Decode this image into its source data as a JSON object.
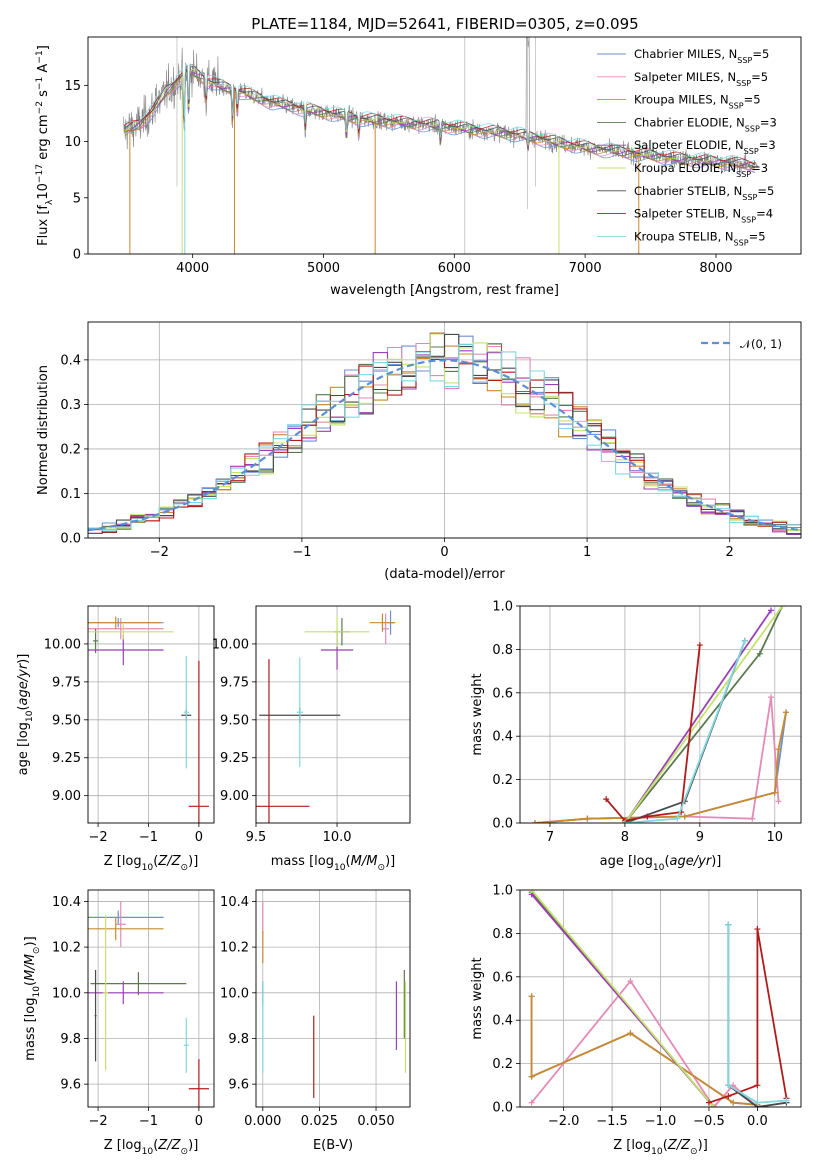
{
  "figure": {
    "title": "PLATE=1184, MJD=52641, FIBERID=0305, z=0.095"
  },
  "colors": {
    "Chabrier MILES": "#6d8fd6",
    "Salpeter MILES": "#e58ab6",
    "Kroupa MILES": "#c98a2e",
    "Chabrier ELODIE": "#5a7a4e",
    "Salpeter ELODIE": "#9b3fb5",
    "Kroupa ELODIE": "#c4e36a",
    "Chabrier STELIB": "#4a4a4a",
    "Salpeter STELIB": "#b01c1c",
    "Kroupa STELIB": "#80d8e0",
    "data": "#7f7f7f",
    "gauss": "#5b8fd6",
    "grid": "#b0b0b0"
  },
  "chart_data": [
    {
      "id": "spectrum",
      "type": "line",
      "xlabel": "wavelength [Angstrom, rest frame]",
      "ylabel": "Flux [f_λ 10^-17 erg cm^-2 s^-1 A^-1]",
      "xlim": [
        3200,
        8650
      ],
      "ylim": [
        0,
        19.3
      ],
      "xticks": [
        4000,
        5000,
        6000,
        7000,
        8000
      ],
      "yticks": [
        0,
        5,
        10,
        15
      ],
      "grid": false,
      "legend_position": "top-right",
      "legend": [
        {
          "label": "Chabrier MILES",
          "n": "5"
        },
        {
          "label": "Salpeter MILES",
          "n": "5"
        },
        {
          "label": "Kroupa MILES",
          "n": "5"
        },
        {
          "label": "Chabrier ELODIE",
          "n": "3"
        },
        {
          "label": "Salpeter ELODIE",
          "n": "3"
        },
        {
          "label": "Kroupa ELODIE",
          "n": "3"
        },
        {
          "label": "Chabrier STELIB",
          "n": "5"
        },
        {
          "label": "Salpeter STELIB",
          "n": "4"
        },
        {
          "label": "Kroupa STELIB",
          "n": "5"
        }
      ],
      "continuum": {
        "wavelength": [
          3480,
          3600,
          3700,
          3800,
          3850,
          3950,
          4000,
          4100,
          4200,
          4400,
          4600,
          4800,
          5000,
          5300,
          5600,
          5900,
          6200,
          6500,
          6800,
          7100,
          7400,
          7700,
          8000,
          8300
        ],
        "flux": [
          11.0,
          11.6,
          12.8,
          14.5,
          15.0,
          16.2,
          16.3,
          15.5,
          15.0,
          14.3,
          13.5,
          13.0,
          12.6,
          12.0,
          11.7,
          11.4,
          11.0,
          10.6,
          9.9,
          9.3,
          8.9,
          8.5,
          8.2,
          7.9
        ]
      }
    },
    {
      "id": "residual-histogram",
      "type": "bar",
      "xlabel": "(data-model)/error",
      "ylabel": "Normed distribution",
      "xlim": [
        -2.5,
        2.5
      ],
      "ylim": [
        0,
        0.485
      ],
      "xticks": [
        -2,
        -1,
        0,
        1,
        2
      ],
      "yticks": [
        0.0,
        0.1,
        0.2,
        0.3,
        0.4
      ],
      "grid": true,
      "legend_position": "top-right",
      "legend": [
        {
          "label": "𝒩(0, 1)"
        }
      ],
      "bin_width": 0.1
    },
    {
      "id": "age-vs-Z",
      "type": "scatter",
      "xlabel": "Z [log10(Z/Z☉)]",
      "ylabel": "age [log10(age/yr)]",
      "xlim": [
        -2.2,
        0.3
      ],
      "ylim": [
        8.82,
        10.25
      ],
      "xticks": [
        -2,
        -1,
        0
      ],
      "yticks": [
        9.0,
        9.25,
        9.5,
        9.75,
        10.0
      ],
      "grid": true,
      "points": [
        {
          "model": "Chabrier MILES",
          "x": -1.6,
          "y": 10.14,
          "xerr": 0.9,
          "yerr": 0.03
        },
        {
          "model": "Salpeter MILES",
          "x": -1.55,
          "y": 10.1,
          "xerr": 0.85,
          "yerr": 0.07
        },
        {
          "model": "Kroupa MILES",
          "x": -1.65,
          "y": 10.14,
          "xerr": 0.9,
          "yerr": 0.04
        },
        {
          "model": "Chabrier ELODIE",
          "x": -2.05,
          "y": 10.02,
          "xerr": 0.05,
          "yerr": 0.08
        },
        {
          "model": "Salpeter ELODIE",
          "x": -1.5,
          "y": 9.96,
          "xerr": 0.8,
          "yerr": 0.1
        },
        {
          "model": "Kroupa ELODIE",
          "x": -1.5,
          "y": 10.08,
          "xerr": 1.0,
          "yerr": 0.05
        },
        {
          "model": "Chabrier STELIB",
          "x": -0.25,
          "y": 9.53,
          "xerr": 0.1,
          "yerr": 0.04
        },
        {
          "model": "Salpeter STELIB",
          "x": 0.0,
          "y": 8.93,
          "xerr": 0.2,
          "yerr": 0.96
        },
        {
          "model": "Kroupa STELIB",
          "x": -0.25,
          "y": 9.55,
          "xerr": 0.05,
          "yerr": 0.37
        }
      ]
    },
    {
      "id": "age-vs-mass",
      "type": "scatter",
      "xlabel": "mass [log10(M/M☉)]",
      "ylabel": "",
      "xlim": [
        9.5,
        10.45
      ],
      "ylim": [
        8.82,
        10.25
      ],
      "xticks": [
        9.5,
        10.0
      ],
      "yticks": [
        9.0,
        9.25,
        9.5,
        9.75,
        10.0
      ],
      "grid": true,
      "points": [
        {
          "model": "Chabrier MILES",
          "x": 10.33,
          "y": 10.14,
          "xerr": 0.02,
          "yerr": 0.08
        },
        {
          "model": "Salpeter MILES",
          "x": 10.3,
          "y": 10.1,
          "xerr": 0.02,
          "yerr": 0.1
        },
        {
          "model": "Kroupa MILES",
          "x": 10.28,
          "y": 10.14,
          "xerr": 0.08,
          "yerr": 0.06
        },
        {
          "model": "Chabrier ELODIE",
          "x": 10.03,
          "y": 10.08,
          "xerr": 0.05,
          "yerr": 0.09
        },
        {
          "model": "Salpeter ELODIE",
          "x": 10.0,
          "y": 9.96,
          "xerr": 0.1,
          "yerr": 0.13
        },
        {
          "model": "Kroupa ELODIE",
          "x": 10.0,
          "y": 10.08,
          "xerr": 0.2,
          "yerr": 0.1
        },
        {
          "model": "Chabrier STELIB",
          "x": 9.77,
          "y": 9.53,
          "xerr": 0.25,
          "yerr": 0.05
        },
        {
          "model": "Salpeter STELIB",
          "x": 9.58,
          "y": 8.93,
          "xerr": 0.25,
          "yerr": 0.97
        },
        {
          "model": "Kroupa STELIB",
          "x": 9.77,
          "y": 9.55,
          "xerr": 0.02,
          "yerr": 0.36
        }
      ]
    },
    {
      "id": "weight-vs-age",
      "type": "line",
      "xlabel": "age [log10(age/yr)]",
      "ylabel": "mass weight",
      "xlim": [
        6.6,
        10.35
      ],
      "ylim": [
        0,
        1.0
      ],
      "xticks": [
        7,
        8,
        9,
        10
      ],
      "yticks": [
        0.0,
        0.2,
        0.4,
        0.6,
        0.8,
        1.0
      ],
      "grid": true,
      "series": [
        {
          "model": "Chabrier MILES",
          "x": [
            6.8,
            7.5,
            8.8,
            10.0,
            10.15
          ],
          "y": [
            0.0,
            0.02,
            0.03,
            0.14,
            0.51
          ]
        },
        {
          "model": "Salpeter MILES",
          "x": [
            6.8,
            7.5,
            8.8,
            9.7,
            9.95,
            10.05
          ],
          "y": [
            0.0,
            0.02,
            0.03,
            0.02,
            0.58,
            0.1
          ]
        },
        {
          "model": "Kroupa MILES",
          "x": [
            6.8,
            7.5,
            8.8,
            10.0,
            10.05,
            10.15
          ],
          "y": [
            0.0,
            0.02,
            0.03,
            0.14,
            0.34,
            0.51
          ]
        },
        {
          "model": "Chabrier ELODIE",
          "x": [
            8.0,
            9.8,
            10.1
          ],
          "y": [
            0.0,
            0.78,
            1.0
          ]
        },
        {
          "model": "Salpeter ELODIE",
          "x": [
            8.0,
            9.95
          ],
          "y": [
            0.0,
            0.98
          ]
        },
        {
          "model": "Kroupa ELODIE",
          "x": [
            8.0,
            10.1
          ],
          "y": [
            0.0,
            1.0
          ]
        },
        {
          "model": "Chabrier STELIB",
          "x": [
            8.0,
            8.8,
            9.6
          ],
          "y": [
            0.0,
            0.1,
            0.84
          ]
        },
        {
          "model": "Salpeter STELIB",
          "x": [
            7.75,
            8.0,
            8.3,
            8.75,
            9.0
          ],
          "y": [
            0.11,
            0.01,
            0.03,
            0.05,
            0.82
          ]
        },
        {
          "model": "Kroupa STELIB",
          "x": [
            8.0,
            8.7,
            9.6
          ],
          "y": [
            0.0,
            0.02,
            0.84
          ]
        }
      ]
    },
    {
      "id": "mass-vs-Z",
      "type": "scatter",
      "xlabel": "Z [log10(Z/Z☉)]",
      "ylabel": "mass [log10(M/M☉)]",
      "xlim": [
        -2.2,
        0.3
      ],
      "ylim": [
        9.5,
        10.45
      ],
      "xticks": [
        -2,
        -1,
        0
      ],
      "yticks": [
        9.6,
        9.8,
        10.0,
        10.2,
        10.4
      ],
      "grid": true,
      "points": [
        {
          "model": "Chabrier MILES",
          "x": -1.6,
          "y": 10.33,
          "xerr": 0.9,
          "yerr": 0.03
        },
        {
          "model": "Salpeter MILES",
          "x": -1.55,
          "y": 10.3,
          "xerr": 0.1,
          "yerr": 0.1
        },
        {
          "model": "Kroupa MILES",
          "x": -1.65,
          "y": 10.28,
          "xerr": 0.95,
          "yerr": 0.05
        },
        {
          "model": "Chabrier ELODIE",
          "x": -1.2,
          "y": 10.04,
          "xerr": 0.95,
          "yerr": 0.05
        },
        {
          "model": "Salpeter ELODIE",
          "x": -1.5,
          "y": 10.0,
          "xerr": 0.8,
          "yerr": 0.05
        },
        {
          "model": "Kroupa ELODIE",
          "x": -1.85,
          "y": 10.0,
          "xerr": 0.05,
          "yerr": 0.34
        },
        {
          "model": "Chabrier STELIB",
          "x": -2.05,
          "y": 9.9,
          "xerr": 0.02,
          "yerr": 0.2
        },
        {
          "model": "Salpeter STELIB",
          "x": 0.0,
          "y": 9.58,
          "xerr": 0.2,
          "yerr": 0.13
        },
        {
          "model": "Kroupa STELIB",
          "x": -0.25,
          "y": 9.77,
          "xerr": 0.05,
          "yerr": 0.12
        }
      ]
    },
    {
      "id": "mass-vs-EBV",
      "type": "scatter",
      "xlabel": "E(B-V)",
      "ylabel": "",
      "xlim": [
        -0.003,
        0.065
      ],
      "ylim": [
        9.5,
        10.45
      ],
      "xticks": [
        0.0,
        0.025,
        0.05
      ],
      "yticks": [
        9.6,
        9.8,
        10.0,
        10.2,
        10.4
      ],
      "grid": true,
      "points": [
        {
          "model": "Salpeter MILES",
          "x": 0.0,
          "y": 10.33,
          "xerr": 0.0,
          "yerr": 0.07
        },
        {
          "model": "Kroupa MILES",
          "x": 0.0,
          "y": 10.2,
          "xerr": 0.0,
          "yerr": 0.07
        },
        {
          "model": "Chabrier MILES",
          "x": 0.0,
          "y": 10.0,
          "xerr": 0.0,
          "yerr": 0.05
        },
        {
          "model": "Kroupa STELIB",
          "x": 0.0,
          "y": 9.85,
          "xerr": 0.0,
          "yerr": 0.2
        },
        {
          "model": "Salpeter STELIB",
          "x": 0.0225,
          "y": 9.72,
          "xerr": 0.0,
          "yerr": 0.18
        },
        {
          "model": "Salpeter ELODIE",
          "x": 0.059,
          "y": 9.9,
          "xerr": 0.0,
          "yerr": 0.15
        },
        {
          "model": "Chabrier ELODIE",
          "x": 0.0625,
          "y": 9.95,
          "xerr": 0.0,
          "yerr": 0.15
        },
        {
          "model": "Kroupa ELODIE",
          "x": 0.063,
          "y": 9.85,
          "xerr": 0.0,
          "yerr": 0.2
        }
      ]
    },
    {
      "id": "weight-vs-Z",
      "type": "line",
      "xlabel": "Z [log10(Z/Z☉)]",
      "ylabel": "mass weight",
      "xlim": [
        -2.45,
        0.45
      ],
      "ylim": [
        0,
        1.0
      ],
      "xticks": [
        -2.0,
        -1.5,
        -1.0,
        -0.5,
        0.0
      ],
      "yticks": [
        0.0,
        0.2,
        0.4,
        0.6,
        0.8,
        1.0
      ],
      "grid": true,
      "series": [
        {
          "model": "Chabrier MILES",
          "x": [
            -2.33,
            -2.33,
            -1.31,
            -0.25,
            0.0
          ],
          "y": [
            0.51,
            0.14,
            0.34,
            0.02,
            0.01
          ]
        },
        {
          "model": "Salpeter MILES",
          "x": [
            -2.33,
            -1.31,
            -0.45,
            -0.25,
            0.0
          ],
          "y": [
            0.02,
            0.58,
            0.0,
            0.1,
            0.0
          ]
        },
        {
          "model": "Kroupa MILES",
          "x": [
            -2.33,
            -2.33,
            -1.31,
            -0.25,
            0.0
          ],
          "y": [
            0.51,
            0.14,
            0.34,
            0.02,
            0.01
          ]
        },
        {
          "model": "Chabrier ELODIE",
          "x": [
            -2.33,
            -0.45
          ],
          "y": [
            0.99,
            0.0
          ]
        },
        {
          "model": "Salpeter ELODIE",
          "x": [
            -2.33,
            -0.45
          ],
          "y": [
            0.98,
            0.0
          ]
        },
        {
          "model": "Kroupa ELODIE",
          "x": [
            -2.33,
            -0.45
          ],
          "y": [
            1.0,
            0.0
          ]
        },
        {
          "model": "Chabrier STELIB",
          "x": [
            -0.3,
            -0.3,
            0.0,
            0.3
          ],
          "y": [
            0.84,
            0.1,
            0.0,
            0.02
          ]
        },
        {
          "model": "Salpeter STELIB",
          "x": [
            -0.5,
            -0.3,
            0.0,
            0.0,
            0.3
          ],
          "y": [
            0.02,
            0.05,
            0.1,
            0.82,
            0.04
          ]
        },
        {
          "model": "Kroupa STELIB",
          "x": [
            -0.3,
            -0.3,
            0.0,
            0.3
          ],
          "y": [
            0.84,
            0.1,
            0.02,
            0.03
          ]
        }
      ]
    }
  ]
}
